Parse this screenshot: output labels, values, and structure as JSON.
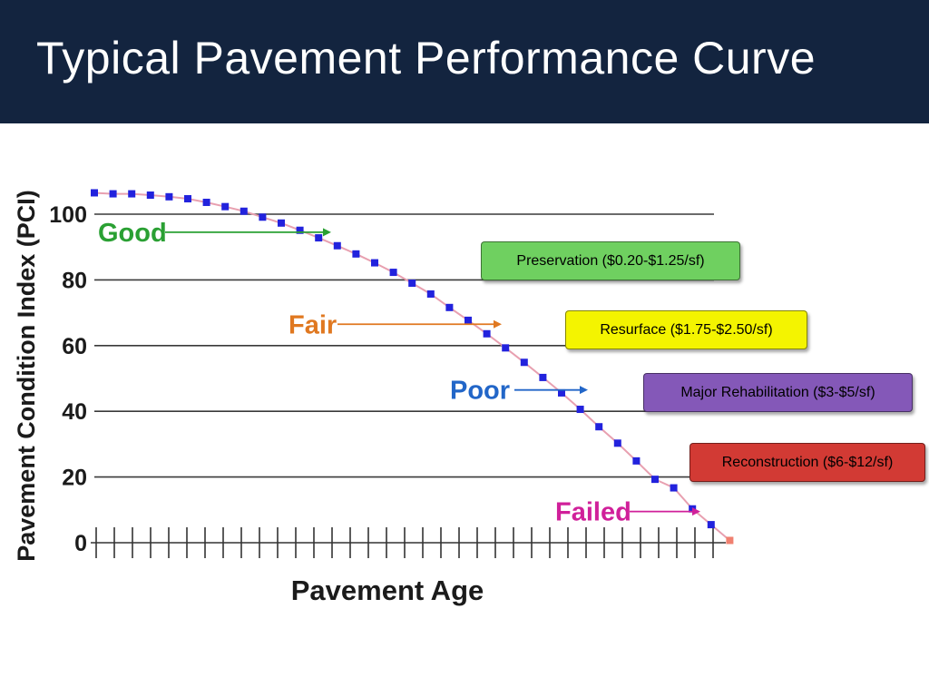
{
  "title": "Typical Pavement Performance Curve",
  "chart_data": {
    "type": "line",
    "title": "Typical Pavement Performance Curve",
    "xlabel": "Pavement Age",
    "ylabel": "Pavement Condition Index (PCI)",
    "ylim": [
      0,
      105
    ],
    "yticks": [
      {
        "value": 0,
        "label": "0"
      },
      {
        "value": 20,
        "label": "20"
      },
      {
        "value": 40,
        "label": "40"
      },
      {
        "value": 60,
        "label": "60"
      },
      {
        "value": 80,
        "label": "80"
      },
      {
        "value": 100,
        "label": "100"
      }
    ],
    "age_ticks": 34,
    "series": [
      {
        "name": "PCI",
        "x": [
          0,
          1,
          2,
          3,
          4,
          5,
          6,
          7,
          8,
          9,
          10,
          11,
          12,
          13,
          14,
          15,
          16,
          17,
          18,
          19,
          20,
          21,
          22,
          23,
          24,
          25,
          26,
          27,
          28,
          29,
          30,
          31,
          32,
          33,
          34
        ],
        "values": [
          106.5,
          106.2,
          106.2,
          105.8,
          105.3,
          104.7,
          103.6,
          102.3,
          100.9,
          99.1,
          97.3,
          95.1,
          92.8,
          90.4,
          87.9,
          85.2,
          82.3,
          79.0,
          75.7,
          71.6,
          67.7,
          63.6,
          59.3,
          54.9,
          50.3,
          45.6,
          40.6,
          35.3,
          30.3,
          24.9,
          19.3,
          16.7,
          10.3,
          5.5,
          0.7
        ],
        "point_color": "#2222dd",
        "line_color": "#e8a0b0"
      }
    ],
    "conditions": [
      {
        "label": "Good",
        "color": "#2aa033",
        "y": 94.5
      },
      {
        "label": "Fair",
        "color": "#e07820",
        "y": 66.5
      },
      {
        "label": "Poor",
        "color": "#2266c8",
        "y": 46.5
      },
      {
        "label": "Failed",
        "color": "#d0209a",
        "y": 9.5
      }
    ],
    "treatments": [
      {
        "label": "Preservation ($0.20-$1.25/sf)",
        "color": "#6fd060"
      },
      {
        "label": "Resurface ($1.75-$2.50/sf)",
        "color": "#f4f400"
      },
      {
        "label": "Major Rehabilitation ($3-$5/sf)",
        "color": "#8458b8"
      },
      {
        "label": "Reconstruction ($6-$12/sf)",
        "color": "#d23a34"
      }
    ]
  }
}
